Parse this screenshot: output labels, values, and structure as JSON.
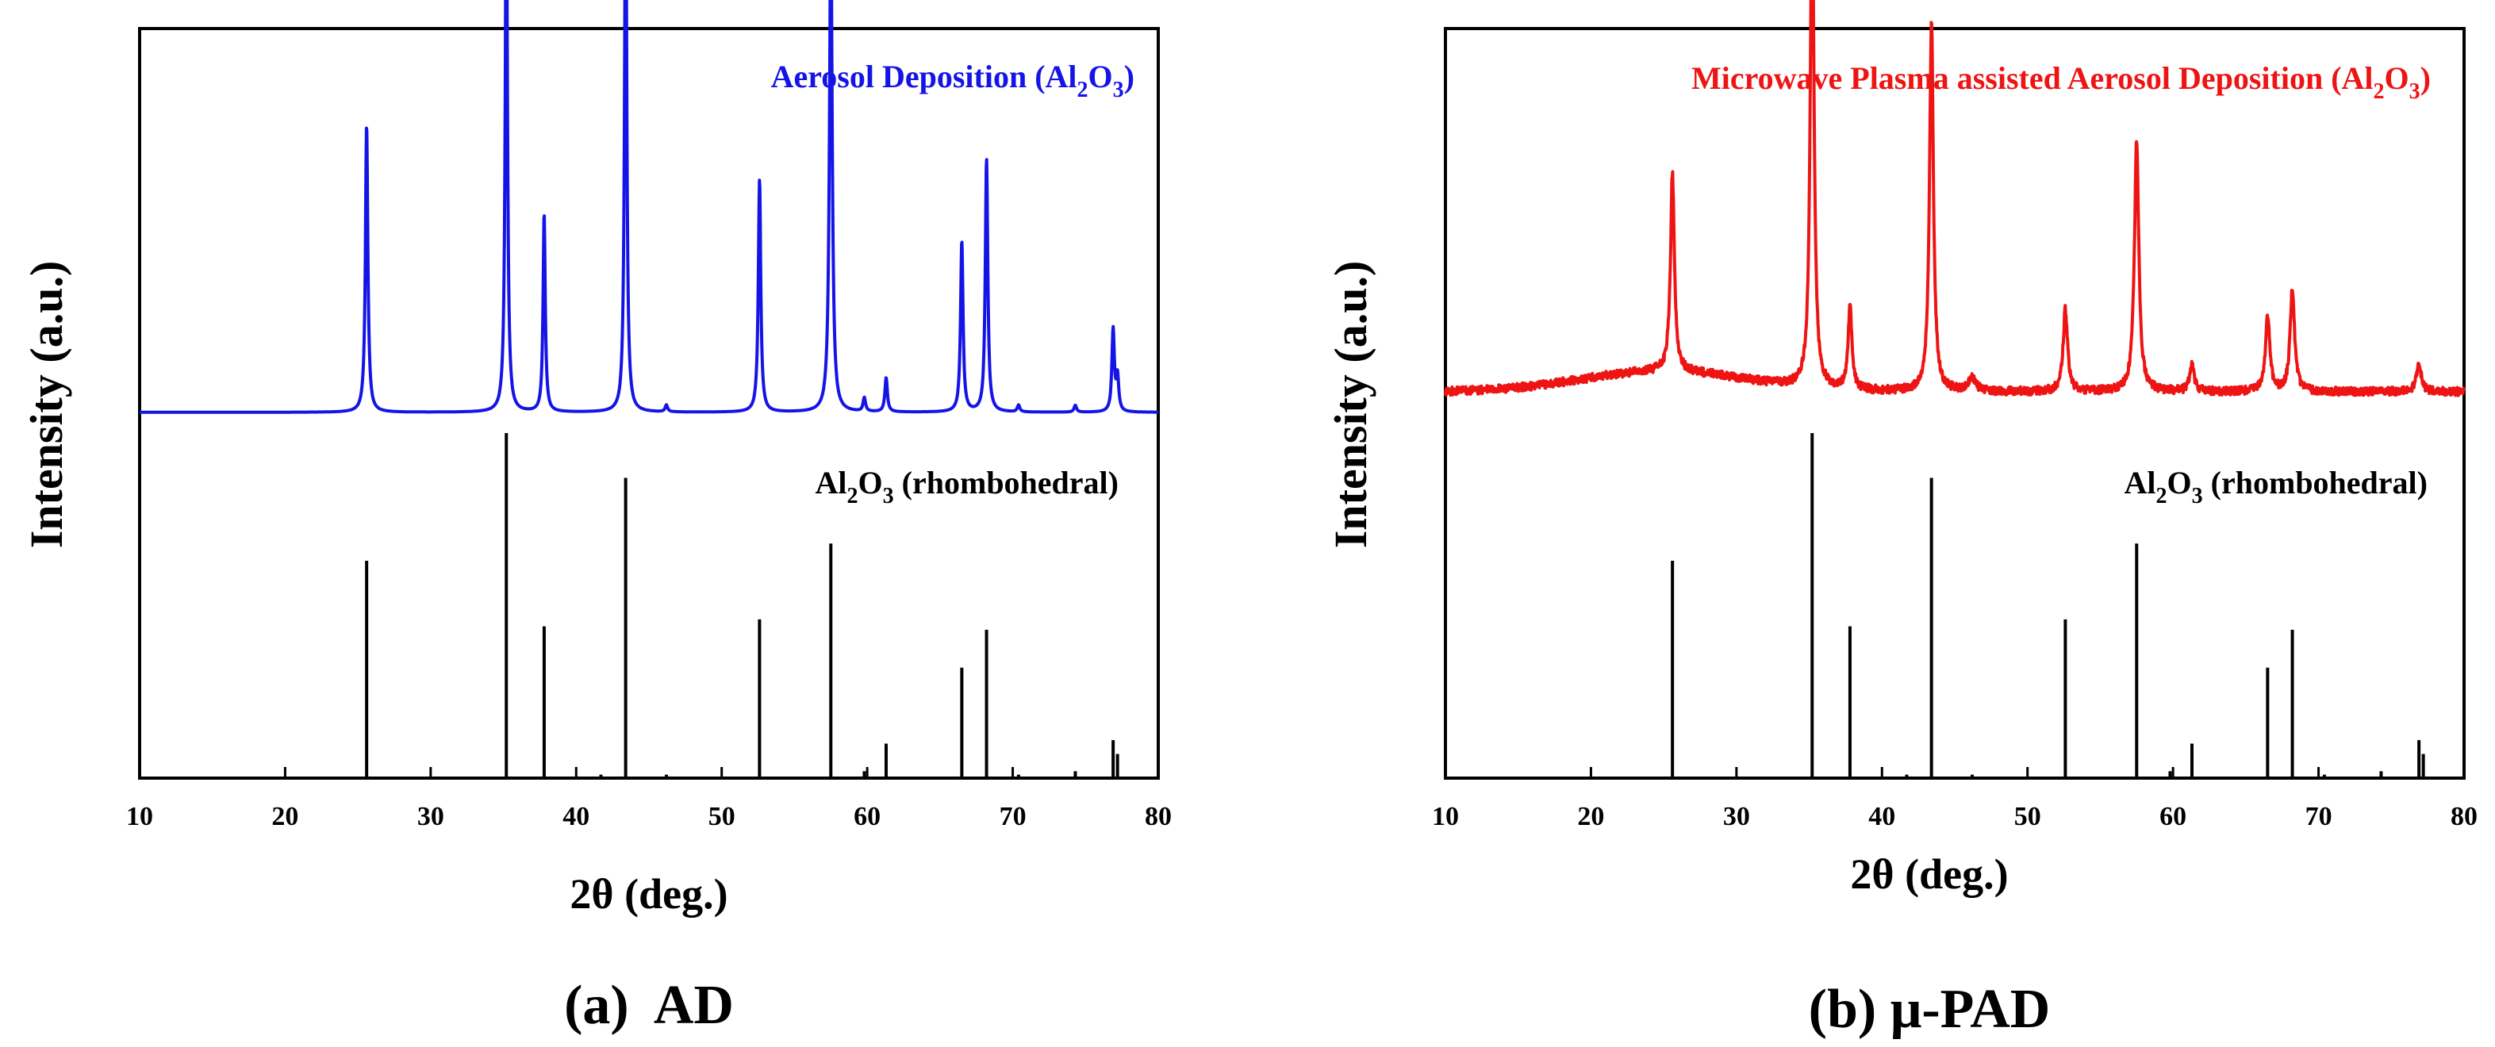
{
  "chart_data": [
    {
      "panel_id": "a",
      "type": "line",
      "caption": "(a)  AD",
      "xlabel": "2θ (deg.)",
      "ylabel": "Intensity (a.u.)",
      "xlim": [
        10,
        80
      ],
      "xticks": [
        10,
        20,
        30,
        40,
        50,
        60,
        70,
        80
      ],
      "ylim": [
        0,
        1
      ],
      "series": [
        {
          "name": "Aerosol Deposition (Al2O3)",
          "color": "#1414e6",
          "baseline": 0.44,
          "noise": 0.0,
          "peaks": [
            {
              "x": 25.6,
              "h": 0.42,
              "w": 0.1
            },
            {
              "x": 35.2,
              "h": 0.82,
              "w": 0.09
            },
            {
              "x": 37.8,
              "h": 0.29,
              "w": 0.09
            },
            {
              "x": 43.4,
              "h": 0.83,
              "w": 0.09
            },
            {
              "x": 46.2,
              "h": 0.01,
              "w": 0.1
            },
            {
              "x": 52.6,
              "h": 0.34,
              "w": 0.1
            },
            {
              "x": 57.5,
              "h": 0.74,
              "w": 0.11
            },
            {
              "x": 59.8,
              "h": 0.02,
              "w": 0.1
            },
            {
              "x": 61.3,
              "h": 0.05,
              "w": 0.1
            },
            {
              "x": 66.5,
              "h": 0.25,
              "w": 0.1
            },
            {
              "x": 68.2,
              "h": 0.37,
              "w": 0.1
            },
            {
              "x": 70.4,
              "h": 0.01,
              "w": 0.1
            },
            {
              "x": 74.3,
              "h": 0.01,
              "w": 0.1
            },
            {
              "x": 76.9,
              "h": 0.12,
              "w": 0.1
            },
            {
              "x": 77.2,
              "h": 0.05,
              "w": 0.1
            }
          ]
        }
      ],
      "reference": {
        "name": "Al2O3 (rhombohedral)",
        "lines": [
          {
            "x": 25.6,
            "h": 0.63
          },
          {
            "x": 35.2,
            "h": 1.0
          },
          {
            "x": 37.8,
            "h": 0.44
          },
          {
            "x": 41.7,
            "h": 0.01
          },
          {
            "x": 43.4,
            "h": 0.87
          },
          {
            "x": 46.2,
            "h": 0.01
          },
          {
            "x": 52.6,
            "h": 0.46
          },
          {
            "x": 57.5,
            "h": 0.68
          },
          {
            "x": 59.8,
            "h": 0.02
          },
          {
            "x": 61.3,
            "h": 0.1
          },
          {
            "x": 66.5,
            "h": 0.32
          },
          {
            "x": 68.2,
            "h": 0.43
          },
          {
            "x": 70.4,
            "h": 0.01
          },
          {
            "x": 74.3,
            "h": 0.02
          },
          {
            "x": 76.9,
            "h": 0.11
          },
          {
            "x": 77.2,
            "h": 0.07
          }
        ]
      }
    },
    {
      "panel_id": "b",
      "type": "line",
      "caption": "(b) μ-PAD",
      "xlabel": "2θ (deg.)",
      "ylabel": "Intensity (a.u.)",
      "xlim": [
        10,
        80
      ],
      "xticks": [
        10,
        20,
        30,
        40,
        50,
        60,
        70,
        80
      ],
      "ylim": [
        0,
        1
      ],
      "series": [
        {
          "name": "Microwave Plasma assisted Aerosol Deposition (Al2O3)",
          "color": "#ee1414",
          "baseline": 0.47,
          "noise": 0.006,
          "hump": {
            "x": 25.0,
            "h": 0.03,
            "w": 8.0
          },
          "peaks": [
            {
              "x": 25.6,
              "h": 0.29,
              "w": 0.16
            },
            {
              "x": 35.2,
              "h": 0.76,
              "w": 0.15
            },
            {
              "x": 37.8,
              "h": 0.12,
              "w": 0.16
            },
            {
              "x": 43.4,
              "h": 0.54,
              "w": 0.16
            },
            {
              "x": 46.2,
              "h": 0.02,
              "w": 0.3
            },
            {
              "x": 52.6,
              "h": 0.12,
              "w": 0.18
            },
            {
              "x": 57.5,
              "h": 0.37,
              "w": 0.18
            },
            {
              "x": 61.3,
              "h": 0.04,
              "w": 0.18
            },
            {
              "x": 66.5,
              "h": 0.11,
              "w": 0.18
            },
            {
              "x": 68.2,
              "h": 0.15,
              "w": 0.18
            },
            {
              "x": 76.9,
              "h": 0.04,
              "w": 0.2
            }
          ]
        }
      ],
      "reference": {
        "name": "Al2O3 (rhombohedral)",
        "lines": [
          {
            "x": 25.6,
            "h": 0.63
          },
          {
            "x": 35.2,
            "h": 1.0
          },
          {
            "x": 37.8,
            "h": 0.44
          },
          {
            "x": 41.7,
            "h": 0.01
          },
          {
            "x": 43.4,
            "h": 0.87
          },
          {
            "x": 46.2,
            "h": 0.01
          },
          {
            "x": 52.6,
            "h": 0.46
          },
          {
            "x": 57.5,
            "h": 0.68
          },
          {
            "x": 59.8,
            "h": 0.02
          },
          {
            "x": 61.3,
            "h": 0.1
          },
          {
            "x": 66.5,
            "h": 0.32
          },
          {
            "x": 68.2,
            "h": 0.43
          },
          {
            "x": 70.4,
            "h": 0.01
          },
          {
            "x": 74.3,
            "h": 0.02
          },
          {
            "x": 76.9,
            "h": 0.11
          },
          {
            "x": 77.2,
            "h": 0.07
          }
        ]
      }
    }
  ]
}
